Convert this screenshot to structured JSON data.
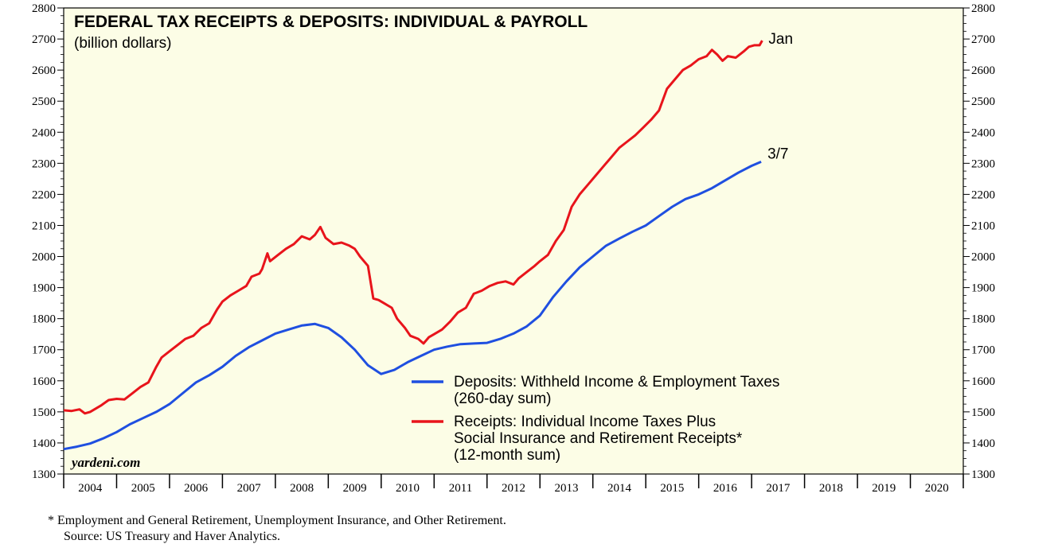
{
  "chart_data": {
    "type": "line",
    "title": "FEDERAL TAX RECEIPTS & DEPOSITS: INDIVIDUAL & PAYROLL",
    "subtitle": "(billion dollars)",
    "ylim": [
      1300,
      2800
    ],
    "y_ticks": [
      "1300",
      "1400",
      "1500",
      "1600",
      "1700",
      "1800",
      "1900",
      "2000",
      "2100",
      "2200",
      "2300",
      "2400",
      "2500",
      "2600",
      "2700",
      "2800"
    ],
    "x_range": [
      2004,
      2021
    ],
    "x_tick_labels": [
      "2004",
      "2005",
      "2006",
      "2007",
      "2008",
      "2009",
      "2010",
      "2011",
      "2012",
      "2013",
      "2014",
      "2015",
      "2016",
      "2017",
      "2018",
      "2019",
      "2020"
    ],
    "grid": false,
    "legend_position": "center-right",
    "brand": "yardeni.com",
    "series": [
      {
        "name": "Deposits: Withheld Income & Employment Taxes",
        "name_line2": "(260-day sum)",
        "color": "#1f4fe0",
        "end_label": "3/7",
        "points": [
          [
            2004.0,
            1380
          ],
          [
            2004.25,
            1388
          ],
          [
            2004.5,
            1398
          ],
          [
            2004.75,
            1415
          ],
          [
            2005.0,
            1435
          ],
          [
            2005.25,
            1460
          ],
          [
            2005.5,
            1480
          ],
          [
            2005.75,
            1500
          ],
          [
            2006.0,
            1525
          ],
          [
            2006.25,
            1560
          ],
          [
            2006.5,
            1595
          ],
          [
            2006.75,
            1618
          ],
          [
            2007.0,
            1645
          ],
          [
            2007.25,
            1680
          ],
          [
            2007.5,
            1708
          ],
          [
            2007.75,
            1730
          ],
          [
            2008.0,
            1752
          ],
          [
            2008.25,
            1765
          ],
          [
            2008.5,
            1778
          ],
          [
            2008.75,
            1783
          ],
          [
            2009.0,
            1770
          ],
          [
            2009.25,
            1740
          ],
          [
            2009.5,
            1700
          ],
          [
            2009.75,
            1650
          ],
          [
            2010.0,
            1622
          ],
          [
            2010.25,
            1635
          ],
          [
            2010.5,
            1660
          ],
          [
            2010.75,
            1680
          ],
          [
            2011.0,
            1700
          ],
          [
            2011.25,
            1710
          ],
          [
            2011.5,
            1718
          ],
          [
            2011.75,
            1720
          ],
          [
            2012.0,
            1722
          ],
          [
            2012.25,
            1735
          ],
          [
            2012.5,
            1752
          ],
          [
            2012.75,
            1775
          ],
          [
            2013.0,
            1810
          ],
          [
            2013.25,
            1870
          ],
          [
            2013.5,
            1920
          ],
          [
            2013.75,
            1965
          ],
          [
            2014.0,
            2000
          ],
          [
            2014.25,
            2035
          ],
          [
            2014.5,
            2058
          ],
          [
            2014.75,
            2080
          ],
          [
            2015.0,
            2100
          ],
          [
            2015.25,
            2130
          ],
          [
            2015.5,
            2160
          ],
          [
            2015.75,
            2185
          ],
          [
            2016.0,
            2200
          ],
          [
            2016.25,
            2220
          ],
          [
            2016.5,
            2245
          ],
          [
            2016.75,
            2270
          ],
          [
            2017.0,
            2292
          ],
          [
            2017.18,
            2305
          ]
        ]
      },
      {
        "name": "Receipts: Individual Income Taxes Plus",
        "name_line2": "Social Insurance and Retirement Receipts*",
        "name_line3": "(12-month sum)",
        "color": "#e8141b",
        "end_label": "Jan",
        "points": [
          [
            2004.0,
            1505
          ],
          [
            2004.15,
            1503
          ],
          [
            2004.3,
            1508
          ],
          [
            2004.4,
            1495
          ],
          [
            2004.5,
            1500
          ],
          [
            2004.7,
            1520
          ],
          [
            2004.85,
            1538
          ],
          [
            2005.0,
            1542
          ],
          [
            2005.15,
            1540
          ],
          [
            2005.3,
            1560
          ],
          [
            2005.45,
            1580
          ],
          [
            2005.6,
            1595
          ],
          [
            2005.75,
            1645
          ],
          [
            2005.85,
            1675
          ],
          [
            2006.0,
            1695
          ],
          [
            2006.15,
            1715
          ],
          [
            2006.3,
            1735
          ],
          [
            2006.45,
            1745
          ],
          [
            2006.6,
            1770
          ],
          [
            2006.75,
            1785
          ],
          [
            2006.9,
            1830
          ],
          [
            2007.0,
            1855
          ],
          [
            2007.15,
            1875
          ],
          [
            2007.3,
            1890
          ],
          [
            2007.45,
            1905
          ],
          [
            2007.55,
            1935
          ],
          [
            2007.7,
            1945
          ],
          [
            2007.75,
            1960
          ],
          [
            2007.85,
            2010
          ],
          [
            2007.9,
            1985
          ],
          [
            2008.05,
            2005
          ],
          [
            2008.2,
            2025
          ],
          [
            2008.35,
            2040
          ],
          [
            2008.5,
            2065
          ],
          [
            2008.65,
            2055
          ],
          [
            2008.75,
            2070
          ],
          [
            2008.85,
            2095
          ],
          [
            2008.95,
            2060
          ],
          [
            2009.1,
            2040
          ],
          [
            2009.25,
            2045
          ],
          [
            2009.4,
            2035
          ],
          [
            2009.5,
            2025
          ],
          [
            2009.6,
            2000
          ],
          [
            2009.75,
            1970
          ],
          [
            2009.85,
            1865
          ],
          [
            2009.95,
            1860
          ],
          [
            2010.05,
            1850
          ],
          [
            2010.2,
            1835
          ],
          [
            2010.3,
            1800
          ],
          [
            2010.45,
            1770
          ],
          [
            2010.55,
            1745
          ],
          [
            2010.7,
            1735
          ],
          [
            2010.8,
            1720
          ],
          [
            2010.9,
            1740
          ],
          [
            2011.0,
            1750
          ],
          [
            2011.15,
            1765
          ],
          [
            2011.3,
            1790
          ],
          [
            2011.45,
            1820
          ],
          [
            2011.6,
            1835
          ],
          [
            2011.75,
            1880
          ],
          [
            2011.9,
            1890
          ],
          [
            2012.05,
            1905
          ],
          [
            2012.2,
            1915
          ],
          [
            2012.35,
            1920
          ],
          [
            2012.5,
            1910
          ],
          [
            2012.6,
            1930
          ],
          [
            2012.75,
            1950
          ],
          [
            2012.9,
            1970
          ],
          [
            2013.0,
            1985
          ],
          [
            2013.15,
            2005
          ],
          [
            2013.3,
            2050
          ],
          [
            2013.45,
            2085
          ],
          [
            2013.6,
            2160
          ],
          [
            2013.75,
            2200
          ],
          [
            2013.9,
            2230
          ],
          [
            2014.05,
            2260
          ],
          [
            2014.2,
            2290
          ],
          [
            2014.35,
            2320
          ],
          [
            2014.5,
            2350
          ],
          [
            2014.65,
            2370
          ],
          [
            2014.8,
            2390
          ],
          [
            2014.95,
            2415
          ],
          [
            2015.1,
            2440
          ],
          [
            2015.25,
            2470
          ],
          [
            2015.4,
            2540
          ],
          [
            2015.55,
            2570
          ],
          [
            2015.7,
            2600
          ],
          [
            2015.85,
            2615
          ],
          [
            2016.0,
            2635
          ],
          [
            2016.15,
            2645
          ],
          [
            2016.25,
            2665
          ],
          [
            2016.35,
            2650
          ],
          [
            2016.45,
            2630
          ],
          [
            2016.55,
            2645
          ],
          [
            2016.7,
            2640
          ],
          [
            2016.85,
            2660
          ],
          [
            2016.95,
            2675
          ],
          [
            2017.05,
            2680
          ],
          [
            2017.15,
            2680
          ],
          [
            2017.2,
            2695
          ]
        ]
      }
    ]
  },
  "footnote": "*  Employment and General Retirement, Unemployment Insurance, and Other Retirement.",
  "source": "Source: US Treasury and Haver Analytics."
}
